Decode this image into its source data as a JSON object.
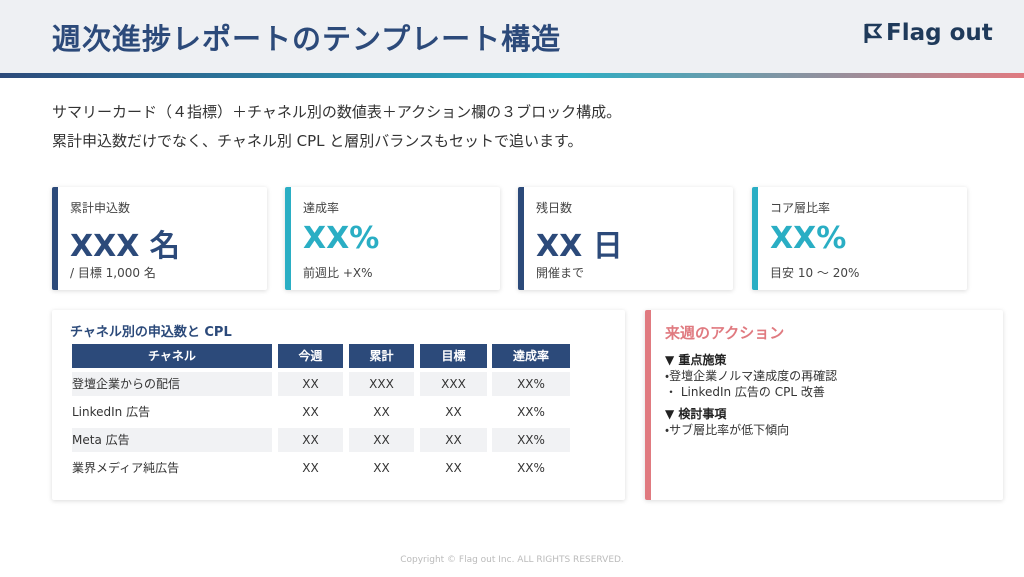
{
  "header": {
    "title": "週次進捗レポートのテンプレート構造",
    "logo": "Flag out"
  },
  "intro": [
    "サマリーカード（４指標）＋チャネル別の数値表＋アクション欄の３ブロック構成。",
    "累計申込数だけでなく、チャネル別 CPL と層別バランスもセットで追います。"
  ],
  "cards": [
    {
      "label": "累計申込数",
      "value": "XXX 名",
      "note": "/ 目標 1,000 名"
    },
    {
      "label": "達成率",
      "value": "XX%",
      "note": "前週比 +X%"
    },
    {
      "label": "残日数",
      "value": "XX 日",
      "note": "開催まで"
    },
    {
      "label": "コア層比率",
      "value": "XX%",
      "note": "目安 10 〜 20%"
    }
  ],
  "table": {
    "title": "チャネル別の申込数と CPL",
    "columns": [
      "チャネル",
      "今週",
      "累計",
      "目標",
      "達成率"
    ],
    "rows": [
      [
        "登壇企業からの配信",
        "XX",
        "XXX",
        "XXX",
        "XX%"
      ],
      [
        "LinkedIn 広告",
        "XX",
        "XX",
        "XX",
        "XX%"
      ],
      [
        "Meta 広告",
        "XX",
        "XX",
        "XX",
        "XX%"
      ],
      [
        "業界メディア純広告",
        "XX",
        "XX",
        "XX",
        "XX%"
      ]
    ]
  },
  "actions": {
    "title": "来週のアクション",
    "sections": [
      {
        "heading": "▼ 重点施策",
        "items": [
          "・登壇企業ノルマ達成度の再確認",
          "・ LinkedIn 広告の CPL 改善"
        ]
      },
      {
        "heading": "▼ 検討事項",
        "items": [
          "・サブ層比率が低下傾向"
        ]
      }
    ]
  },
  "footer": "Copyright © Flag out Inc. ALL RIGHTS RESERVED."
}
